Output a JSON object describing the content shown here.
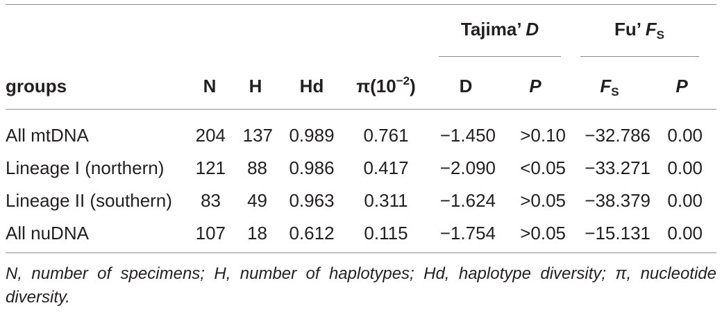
{
  "table": {
    "group_headers": {
      "tajima_label": "Tajima’ ",
      "tajima_var": "D",
      "fu_label": "Fu’ ",
      "fu_var": "F",
      "fu_sub": "S"
    },
    "columns": {
      "groups": "groups",
      "n": "N",
      "h": "H",
      "hd": "Hd",
      "pi_base": "π(10",
      "pi_exp": "−2",
      "pi_close": ")",
      "d": "D",
      "p1": "P",
      "fs_var": "F",
      "fs_sub": "S",
      "p2": "P"
    },
    "rows": [
      {
        "group": "All mtDNA",
        "n": "204",
        "h": "137",
        "hd": "0.989",
        "pi": "0.761",
        "d": "−1.450",
        "p1": ">0.10",
        "fs": "−32.786",
        "p2": "0.00"
      },
      {
        "group": "Lineage I (northern)",
        "n": "121",
        "h": "88",
        "hd": "0.986",
        "pi": "0.417",
        "d": "−2.090",
        "p1": "<0.05",
        "fs": "−33.271",
        "p2": "0.00"
      },
      {
        "group": "Lineage II (southern)",
        "n": "83",
        "h": "49",
        "hd": "0.963",
        "pi": "0.311",
        "d": "−1.624",
        "p1": ">0.05",
        "fs": "−38.379",
        "p2": "0.00"
      },
      {
        "group": "All nuDNA",
        "n": "107",
        "h": "18",
        "hd": "0.612",
        "pi": "0.115",
        "d": "−1.754",
        "p1": ">0.05",
        "fs": "−15.131",
        "p2": "0.00"
      }
    ]
  },
  "footnote": "N, number of specimens; H, number of haplotypes; Hd, haplotype diversity; π, nucleotide diversity."
}
